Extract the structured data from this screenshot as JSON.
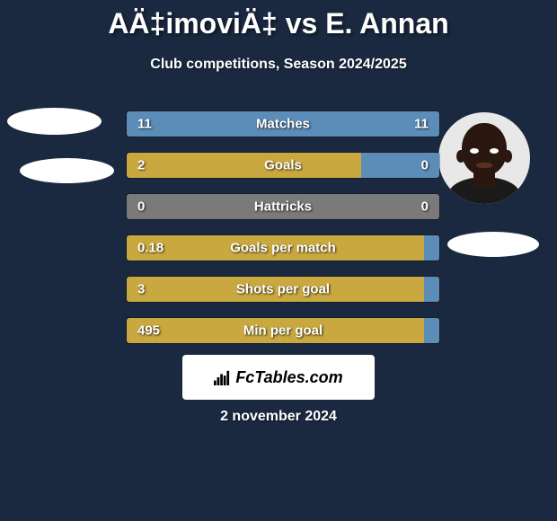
{
  "title": "AÄ‡imoviÄ‡ vs E. Annan",
  "subtitle": "Club competitions, Season 2024/2025",
  "date": "2 november 2024",
  "logo_text": "FcTables.com",
  "colors": {
    "background": "#1a2940",
    "bar_blue": "#5b8db8",
    "bar_olive": "#c9a93f",
    "bar_neutral": "#7a7a7a",
    "text": "#ffffff"
  },
  "stats": [
    {
      "label": "Matches",
      "left_value": "11",
      "right_value": "11",
      "left_width": 50,
      "right_width": 50,
      "left_color": "#5b8db8",
      "right_color": "#5b8db8",
      "bg_color": "#5b8db8"
    },
    {
      "label": "Goals",
      "left_value": "2",
      "right_value": "0",
      "left_width": 75,
      "right_width": 25,
      "left_color": "#c9a93f",
      "right_color": "#5b8db8",
      "bg_color": "#5b8db8"
    },
    {
      "label": "Hattricks",
      "left_value": "0",
      "right_value": "0",
      "left_width": 50,
      "right_width": 50,
      "left_color": "#7a7a7a",
      "right_color": "#7a7a7a",
      "bg_color": "#7a7a7a"
    },
    {
      "label": "Goals per match",
      "left_value": "0.18",
      "right_value": "",
      "left_width": 95,
      "right_width": 5,
      "left_color": "#c9a93f",
      "right_color": "#5b8db8",
      "bg_color": "#c9a93f"
    },
    {
      "label": "Shots per goal",
      "left_value": "3",
      "right_value": "",
      "left_width": 95,
      "right_width": 5,
      "left_color": "#c9a93f",
      "right_color": "#5b8db8",
      "bg_color": "#c9a93f"
    },
    {
      "label": "Min per goal",
      "left_value": "495",
      "right_value": "",
      "left_width": 95,
      "right_width": 5,
      "left_color": "#c9a93f",
      "right_color": "#5b8db8",
      "bg_color": "#c9a93f"
    }
  ]
}
